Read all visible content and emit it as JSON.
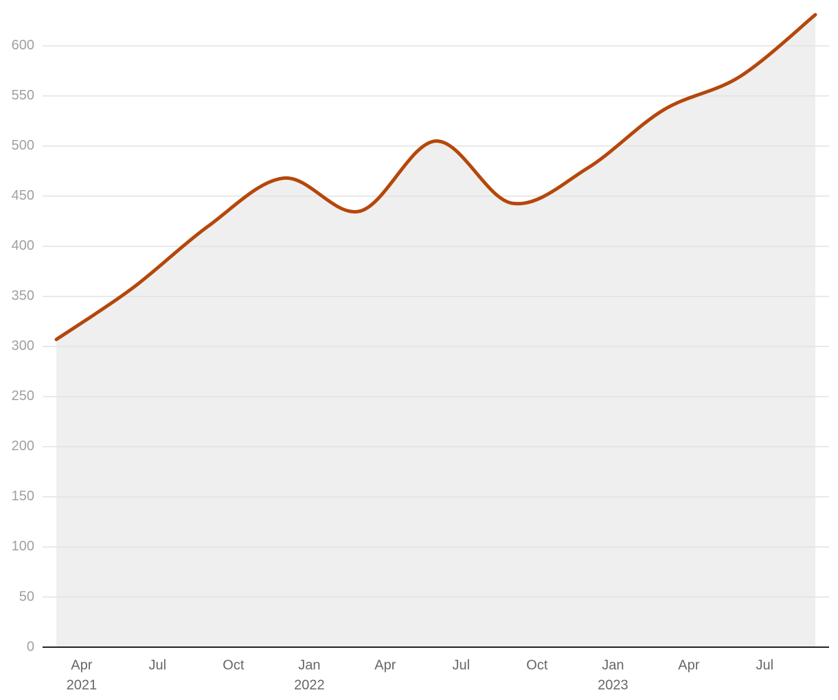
{
  "chart_data": {
    "type": "area",
    "x": [
      "2021-03",
      "2021-06",
      "2021-09",
      "2021-12",
      "2022-03",
      "2022-06",
      "2022-09",
      "2022-12",
      "2023-03",
      "2023-06",
      "2023-09"
    ],
    "values": [
      307,
      358,
      420,
      468,
      435,
      505,
      443,
      478,
      536,
      569,
      631
    ],
    "color": "#b5470b",
    "fill": "#efefef",
    "xlim": [
      "2021-03",
      "2023-09"
    ],
    "ylim": [
      0,
      632
    ],
    "yticks": [
      0,
      50,
      100,
      150,
      200,
      250,
      300,
      350,
      400,
      450,
      500,
      550,
      600
    ],
    "xticks": [
      {
        "value": "2021-04",
        "label": "Apr",
        "year": "2021"
      },
      {
        "value": "2021-07",
        "label": "Jul"
      },
      {
        "value": "2021-10",
        "label": "Oct"
      },
      {
        "value": "2022-01",
        "label": "Jan",
        "year": "2022"
      },
      {
        "value": "2022-04",
        "label": "Apr"
      },
      {
        "value": "2022-07",
        "label": "Jul"
      },
      {
        "value": "2022-10",
        "label": "Oct"
      },
      {
        "value": "2023-01",
        "label": "Jan",
        "year": "2023"
      },
      {
        "value": "2023-04",
        "label": "Apr"
      },
      {
        "value": "2023-07",
        "label": "Jul"
      }
    ],
    "grid": true
  }
}
